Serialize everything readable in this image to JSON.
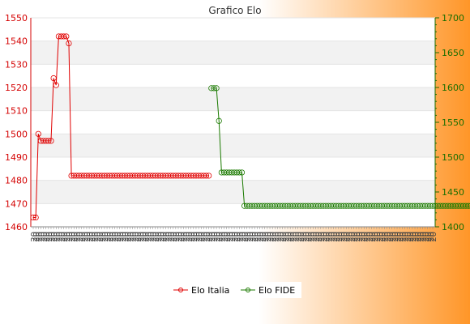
{
  "chart_data": {
    "type": "line",
    "title": "Grafico Elo",
    "xlabel": "",
    "ylabel": "",
    "grid": true,
    "legend_position": "bottom",
    "colors": {
      "background_left": "#ffffff",
      "background_right": "#ff9628",
      "plot_band": "#f2f2f2",
      "plot_bg": "#ffffff",
      "left_axis": "#d40000",
      "right_axis": "#1a6e00",
      "series_italia": "#e00000",
      "series_fide": "#1b7a00"
    },
    "y_left": {
      "min": 1460,
      "max": 1550,
      "ticks": [
        1460,
        1470,
        1480,
        1490,
        1500,
        1510,
        1520,
        1530,
        1540,
        1550
      ]
    },
    "y_right": {
      "min": 1400,
      "max": 1700,
      "ticks": [
        1400,
        1450,
        1500,
        1550,
        1600,
        1650,
        1700
      ]
    },
    "x_count": 158,
    "x_tick_label_stub": "20",
    "series": [
      {
        "name": "Elo Italia",
        "axis": "left",
        "start": 0,
        "values": [
          1464,
          1464,
          1500,
          1497,
          1497,
          1497,
          1497,
          1497,
          1524,
          1521,
          1542,
          1542,
          1542,
          1542,
          1539,
          1482,
          1482,
          1482,
          1482,
          1482,
          1482,
          1482,
          1482,
          1482,
          1482,
          1482,
          1482,
          1482,
          1482,
          1482,
          1482,
          1482,
          1482,
          1482,
          1482,
          1482,
          1482,
          1482,
          1482,
          1482,
          1482,
          1482,
          1482,
          1482,
          1482,
          1482,
          1482,
          1482,
          1482,
          1482,
          1482,
          1482,
          1482,
          1482,
          1482,
          1482,
          1482,
          1482,
          1482,
          1482,
          1482,
          1482,
          1482,
          1482,
          1482,
          1482,
          1482,
          1482,
          1482,
          1482
        ]
      },
      {
        "name": "Elo FIDE",
        "axis": "right",
        "start": 70,
        "values": [
          1599,
          1599,
          1599,
          1552,
          1478,
          1478,
          1478,
          1478,
          1478,
          1478,
          1478,
          1478,
          1478,
          1430,
          1430,
          1430,
          1430,
          1430,
          1430,
          1430,
          1430,
          1430,
          1430,
          1430,
          1430,
          1430,
          1430,
          1430,
          1430,
          1430,
          1430,
          1430,
          1430,
          1430,
          1430,
          1430,
          1430,
          1430,
          1430,
          1430,
          1430,
          1430,
          1430,
          1430,
          1430,
          1430,
          1430,
          1430,
          1430,
          1430,
          1430,
          1430,
          1430,
          1430,
          1430,
          1430,
          1430,
          1430,
          1430,
          1430,
          1430,
          1430,
          1430,
          1430,
          1430,
          1430,
          1430,
          1430,
          1430,
          1430,
          1430,
          1430,
          1430,
          1430,
          1430,
          1430,
          1430,
          1430,
          1430,
          1430,
          1430,
          1430,
          1430,
          1430,
          1430,
          1430,
          1430,
          1430,
          1430,
          1430,
          1430,
          1430,
          1430,
          1430,
          1430,
          1430,
          1430,
          1430,
          1430,
          1430,
          1430,
          1430,
          1430,
          1430,
          1430,
          1430,
          1430,
          1430,
          1430,
          1430,
          1430,
          1430,
          1430,
          1430,
          1430,
          1430,
          1430,
          1430,
          1430,
          1430,
          1430,
          1430,
          1430,
          1430,
          1430,
          1430,
          1430,
          1430,
          1430,
          1430,
          1430,
          1430,
          1430,
          1430,
          1430,
          1430,
          1430,
          1430,
          1430,
          1430
        ]
      }
    ]
  }
}
